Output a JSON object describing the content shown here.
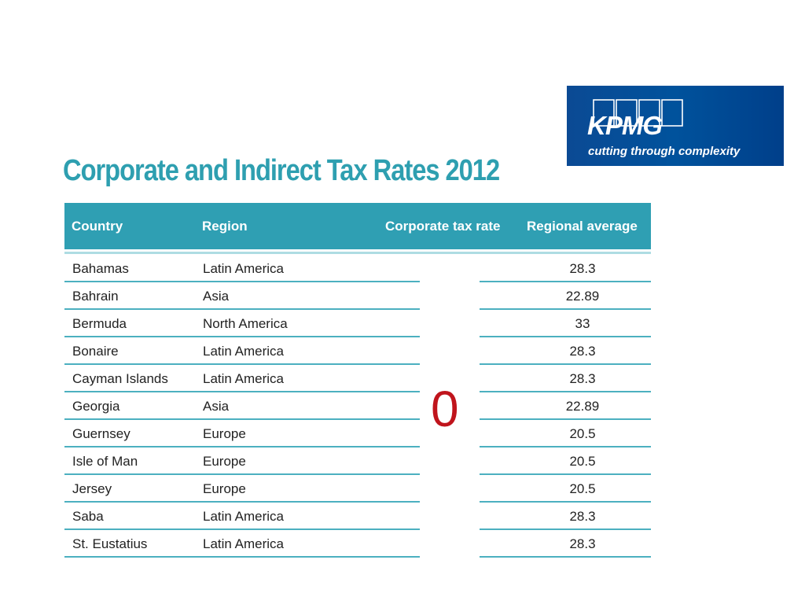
{
  "logo": {
    "wordmark": "KPMG",
    "tagline": "cutting through complexity",
    "background_color": "#00529c"
  },
  "title": "Corporate and Indirect Tax Rates 2012",
  "table": {
    "headers": {
      "country": "Country",
      "region": "Region",
      "corporate_tax_rate": "Corporate tax rate",
      "regional_average": "Regional average"
    },
    "rows": [
      {
        "country": "Bahamas",
        "region": "Latin America",
        "regional_average": "28.3"
      },
      {
        "country": "Bahrain",
        "region": "Asia",
        "regional_average": "22.89"
      },
      {
        "country": "Bermuda",
        "region": "North America",
        "regional_average": "33"
      },
      {
        "country": "Bonaire",
        "region": "Latin America",
        "regional_average": "28.3"
      },
      {
        "country": "Cayman Islands",
        "region": "Latin America",
        "regional_average": "28.3"
      },
      {
        "country": "Georgia",
        "region": "Asia",
        "regional_average": "22.89"
      },
      {
        "country": "Guernsey",
        "region": "Europe",
        "regional_average": "20.5"
      },
      {
        "country": "Isle of Man",
        "region": "Europe",
        "regional_average": "20.5"
      },
      {
        "country": "Jersey",
        "region": "Europe",
        "regional_average": "20.5"
      },
      {
        "country": "Saba",
        "region": "Latin America",
        "regional_average": "28.3"
      },
      {
        "country": "St. Eustatius",
        "region": "Latin America",
        "regional_average": "28.3"
      }
    ],
    "corporate_tax_rate_value": "0",
    "header_color": "#2f9fb3",
    "rule_color": "#4cb0c0",
    "zero_color": "#c0141c"
  }
}
